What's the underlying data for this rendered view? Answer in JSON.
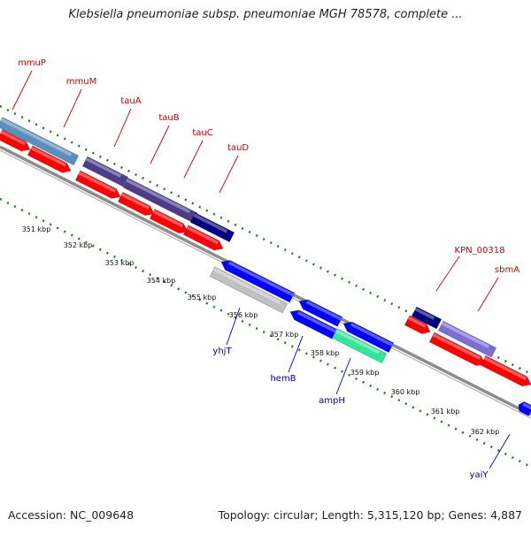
{
  "header": {
    "title": "Klebsiella pneumoniae subsp. pneumoniae MGH 78578, complete ..."
  },
  "footer": {
    "accession": "Accession: NC_009648",
    "summary": "Topology: circular; Length: 5,315,120 bp; Genes: 4,887"
  },
  "map": {
    "scale_labels": [
      "351 kbp",
      "352 kbp",
      "353 kbp",
      "354 kbp",
      "355 kbp",
      "356 kbp",
      "357 kbp",
      "358 kbp",
      "359 kbp",
      "360 kbp",
      "361 kbp",
      "362 kbp"
    ],
    "forward_gene_labels": [
      "mmuP",
      "mmuM",
      "tauA",
      "tauB",
      "tauC",
      "tauD",
      "KPN_00318",
      "sbmA"
    ],
    "reverse_gene_labels": [
      "yhjT",
      "hemB",
      "ampH",
      "yaiY"
    ]
  },
  "colors": {
    "forward_label": "#cc0000",
    "reverse_label": "#0000aa",
    "backbone": "#8c8c8c",
    "tick": "#1e7d1e",
    "cds": "#ff0000",
    "gene_forward": "#0000ff",
    "gene_navy": "#000080",
    "gene_slate": "#4b3c8c",
    "gene_steel": "#5a8fbf",
    "gene_lavender": "#7b6fd6",
    "gene_grey": "#c0c0c0",
    "gene_aqua": "#33e69a"
  }
}
